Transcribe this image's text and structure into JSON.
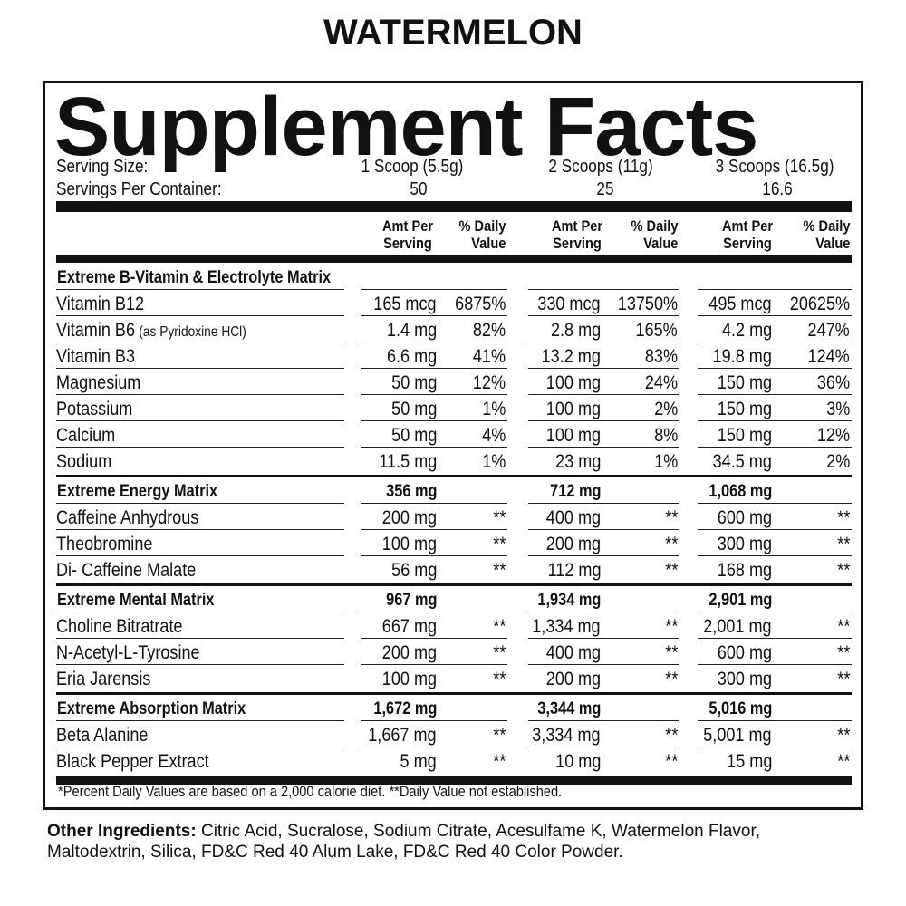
{
  "flavor": "WATERMELON",
  "title": "Supplement Facts",
  "serving_size": {
    "label": "Serving Size:",
    "values": [
      "1 Scoop (5.5g)",
      "2 Scoops (11g)",
      "3 Scoops (16.5g)"
    ]
  },
  "servings_per_container": {
    "label": "Servings Per Container:",
    "values": [
      "50",
      "25",
      "16.6"
    ]
  },
  "column_headers": {
    "amount": [
      "Amt Per",
      "Serving"
    ],
    "daily_value": [
      "% Daily",
      "Value"
    ]
  },
  "sections": [
    {
      "name": "Extreme B-Vitamin & Electrolyte Matrix",
      "rows": [
        {
          "name": "Vitamin B12",
          "values": [
            [
              "165 mcg",
              "6875%"
            ],
            [
              "330 mcg",
              "13750%"
            ],
            [
              "495 mcg",
              "20625%"
            ]
          ]
        },
        {
          "name": "Vitamin B6",
          "note": "(as Pyridoxine HCl)",
          "values": [
            [
              "1.4 mg",
              "82%"
            ],
            [
              "2.8 mg",
              "165%"
            ],
            [
              "4.2 mg",
              "247%"
            ]
          ]
        },
        {
          "name": "Vitamin B3",
          "values": [
            [
              "6.6 mg",
              "41%"
            ],
            [
              "13.2 mg",
              "83%"
            ],
            [
              "19.8 mg",
              "124%"
            ]
          ]
        },
        {
          "name": "Magnesium",
          "values": [
            [
              "50 mg",
              "12%"
            ],
            [
              "100 mg",
              "24%"
            ],
            [
              "150 mg",
              "36%"
            ]
          ]
        },
        {
          "name": "Potassium",
          "values": [
            [
              "50 mg",
              "1%"
            ],
            [
              "100 mg",
              "2%"
            ],
            [
              "150 mg",
              "3%"
            ]
          ]
        },
        {
          "name": "Calcium",
          "values": [
            [
              "50 mg",
              "4%"
            ],
            [
              "100 mg",
              "8%"
            ],
            [
              "150 mg",
              "12%"
            ]
          ]
        },
        {
          "name": "Sodium",
          "values": [
            [
              "11.5 mg",
              "1%"
            ],
            [
              "23 mg",
              "1%"
            ],
            [
              "34.5 mg",
              "2%"
            ]
          ]
        }
      ]
    },
    {
      "name": "Extreme Energy Matrix",
      "totals": [
        "356 mg",
        "712 mg",
        "1,068 mg"
      ],
      "rows": [
        {
          "name": "Caffeine Anhydrous",
          "values": [
            [
              "200 mg",
              "**"
            ],
            [
              "400 mg",
              "**"
            ],
            [
              "600 mg",
              "**"
            ]
          ]
        },
        {
          "name": "Theobromine",
          "values": [
            [
              "100 mg",
              "**"
            ],
            [
              "200 mg",
              "**"
            ],
            [
              "300 mg",
              "**"
            ]
          ]
        },
        {
          "name": "Di- Caffeine Malate",
          "values": [
            [
              "56 mg",
              "**"
            ],
            [
              "112 mg",
              "**"
            ],
            [
              "168 mg",
              "**"
            ]
          ]
        }
      ]
    },
    {
      "name": "Extreme Mental Matrix",
      "totals": [
        "967 mg",
        "1,934 mg",
        "2,901 mg"
      ],
      "rows": [
        {
          "name": "Choline Bitratrate",
          "values": [
            [
              "667 mg",
              "**"
            ],
            [
              "1,334 mg",
              "**"
            ],
            [
              "2,001 mg",
              "**"
            ]
          ]
        },
        {
          "name": "N-Acetyl-L-Tyrosine",
          "values": [
            [
              "200 mg",
              "**"
            ],
            [
              "400 mg",
              "**"
            ],
            [
              "600 mg",
              "**"
            ]
          ]
        },
        {
          "name": "Eria Jarensis",
          "values": [
            [
              "100 mg",
              "**"
            ],
            [
              "200 mg",
              "**"
            ],
            [
              "300 mg",
              "**"
            ]
          ]
        }
      ]
    },
    {
      "name": "Extreme Absorption Matrix",
      "totals": [
        "1,672 mg",
        "3,344 mg",
        "5,016 mg"
      ],
      "rows": [
        {
          "name": "Beta Alanine",
          "values": [
            [
              "1,667 mg",
              "**"
            ],
            [
              "3,334 mg",
              "**"
            ],
            [
              "5,001 mg",
              "**"
            ]
          ]
        },
        {
          "name": "Black Pepper Extract",
          "values": [
            [
              "5 mg",
              "**"
            ],
            [
              "10 mg",
              "**"
            ],
            [
              "15 mg",
              "**"
            ]
          ]
        }
      ]
    }
  ],
  "footnote": "*Percent Daily Values are based on a 2,000 calorie diet. **Daily Value not established.",
  "other_ingredients": {
    "label": "Other Ingredients:",
    "text": "Citric Acid, Sucralose, Sodium Citrate, Acesulfame K, Watermelon Flavor, Maltodextrin, Silica, FD&C Red 40 Alum Lake, FD&C Red 40 Color Powder."
  }
}
